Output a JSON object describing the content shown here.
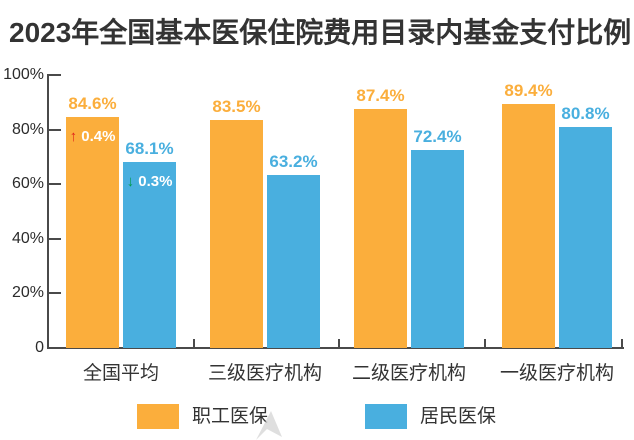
{
  "title": "2023年全国基本医保住院费用目录内基金支付比例",
  "chart_data": {
    "type": "bar",
    "title": "2023年全国基本医保住院费用目录内基金支付比例",
    "categories": [
      "全国平均",
      "三级医疗机构",
      "二级医疗机构",
      "一级医疗机构"
    ],
    "series": [
      {
        "name": "职工医保",
        "color": "#FBAE3C",
        "values": [
          84.6,
          83.5,
          87.4,
          89.4
        ],
        "labels": [
          "84.6%",
          "83.5%",
          "87.4%",
          "89.4%"
        ]
      },
      {
        "name": "居民医保",
        "color": "#49AFDF",
        "values": [
          68.1,
          63.2,
          72.4,
          80.8
        ],
        "labels": [
          "68.1%",
          "63.2%",
          "72.4%",
          "80.8%"
        ]
      }
    ],
    "annotations": [
      {
        "series_index": 0,
        "category_index": 0,
        "direction": "up",
        "arrow": "↑",
        "text": "0.4%",
        "arrow_color": "#E1251B",
        "text_color": "#FFFFFF"
      },
      {
        "series_index": 1,
        "category_index": 0,
        "direction": "down",
        "arrow": "↓",
        "text": "0.3%",
        "arrow_color": "#009A4E",
        "text_color": "#FFFFFF"
      }
    ],
    "y_axis": {
      "ticks": [
        "100%",
        "80%",
        "60%",
        "40%",
        "20%",
        "0"
      ],
      "values": [
        100,
        80,
        60,
        40,
        20,
        0
      ],
      "min": 0,
      "max": 100,
      "grid": false
    },
    "legend": {
      "position": "bottom",
      "entries": [
        "职工医保",
        "居民医保"
      ]
    }
  },
  "colors": {
    "employee_series": "#FBAE3C",
    "resident_series": "#49AFDF",
    "title_text": "#333333",
    "axis": "#4A4A4A",
    "up_arrow": "#E1251B",
    "down_arrow": "#009A4E",
    "background": "#FFFFFF",
    "watermark": "#D7D7D7"
  }
}
